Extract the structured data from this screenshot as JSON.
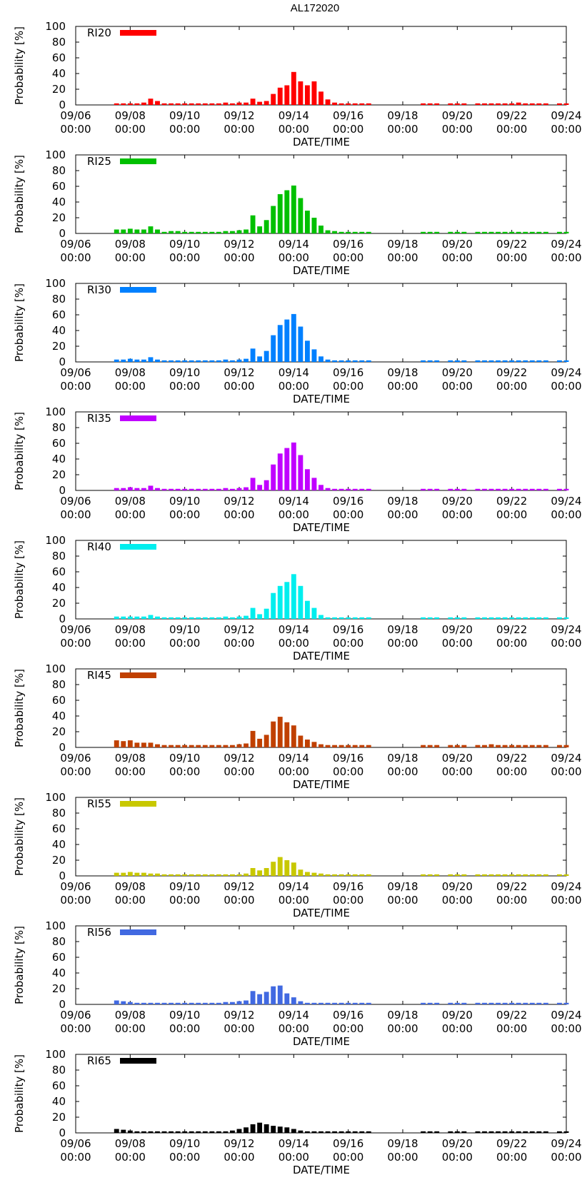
{
  "title": "AL172020",
  "chart_data": {
    "type": "bar",
    "title": "AL172020",
    "xlabel": "DATE/TIME",
    "ylabel": "Probability [%]",
    "ylim": [
      0,
      100
    ],
    "yticks": [
      "0",
      "20",
      "40",
      "60",
      "80",
      "100"
    ],
    "xlim_days": [
      0,
      18
    ],
    "xtick_days": [
      0,
      2,
      4,
      6,
      8,
      10,
      12,
      14,
      16,
      18
    ],
    "xtick_dates": [
      "09/06",
      "09/08",
      "09/10",
      "09/12",
      "09/14",
      "09/16",
      "09/18",
      "09/20",
      "09/22",
      "09/24"
    ],
    "xtick_times": [
      "00:00",
      "00:00",
      "00:00",
      "00:00",
      "00:00",
      "00:00",
      "00:00",
      "00:00",
      "00:00",
      "00:00"
    ],
    "bar_interval_hours": 6,
    "first_bar_day": 1.5,
    "legend_position": "top-left",
    "panels": [
      {
        "name": "RI20",
        "color": "#ff0000",
        "values": [
          2,
          2,
          2,
          2,
          3,
          8,
          5,
          2,
          2,
          2,
          2,
          2,
          2,
          2,
          2,
          2,
          3,
          2,
          3,
          3,
          8,
          4,
          5,
          14,
          22,
          25,
          42,
          30,
          25,
          30,
          17,
          7,
          3,
          2,
          2,
          2,
          2,
          2,
          null,
          null,
          null,
          null,
          null,
          null,
          null,
          2,
          2,
          2,
          null,
          2,
          2,
          2,
          null,
          2,
          2,
          2,
          2,
          2,
          2,
          3,
          2,
          2,
          2,
          2,
          null,
          2,
          2
        ]
      },
      {
        "name": "RI25",
        "color": "#00c000",
        "values": [
          5,
          5,
          6,
          5,
          5,
          9,
          5,
          2,
          3,
          3,
          2,
          2,
          2,
          2,
          2,
          2,
          3,
          3,
          4,
          5,
          23,
          9,
          17,
          35,
          50,
          55,
          61,
          45,
          29,
          20,
          10,
          4,
          3,
          2,
          2,
          2,
          2,
          2,
          null,
          null,
          null,
          null,
          null,
          null,
          null,
          2,
          2,
          2,
          null,
          2,
          2,
          2,
          null,
          2,
          2,
          2,
          2,
          2,
          2,
          2,
          2,
          2,
          2,
          2,
          null,
          2,
          2
        ]
      },
      {
        "name": "RI30",
        "color": "#0080ff",
        "values": [
          3,
          3,
          4,
          3,
          3,
          6,
          3,
          2,
          2,
          2,
          2,
          2,
          2,
          2,
          2,
          2,
          3,
          2,
          3,
          4,
          17,
          7,
          14,
          34,
          47,
          54,
          61,
          45,
          27,
          16,
          7,
          3,
          2,
          2,
          2,
          2,
          2,
          2,
          null,
          null,
          null,
          null,
          null,
          null,
          null,
          2,
          2,
          2,
          null,
          2,
          2,
          2,
          null,
          2,
          2,
          2,
          2,
          2,
          2,
          2,
          2,
          2,
          2,
          2,
          null,
          2,
          2
        ]
      },
      {
        "name": "RI35",
        "color": "#c000ff",
        "values": [
          3,
          3,
          4,
          3,
          3,
          6,
          3,
          2,
          2,
          2,
          2,
          2,
          2,
          2,
          2,
          2,
          3,
          2,
          3,
          4,
          16,
          7,
          13,
          33,
          47,
          54,
          61,
          45,
          27,
          16,
          7,
          3,
          2,
          2,
          2,
          2,
          2,
          2,
          null,
          null,
          null,
          null,
          null,
          null,
          null,
          2,
          2,
          2,
          null,
          2,
          2,
          2,
          null,
          2,
          2,
          2,
          2,
          2,
          2,
          2,
          2,
          2,
          2,
          2,
          null,
          2,
          2
        ]
      },
      {
        "name": "RI40",
        "color": "#00eeee",
        "values": [
          3,
          3,
          3,
          3,
          3,
          5,
          3,
          2,
          2,
          2,
          2,
          2,
          2,
          2,
          2,
          2,
          3,
          2,
          3,
          4,
          14,
          6,
          13,
          33,
          42,
          47,
          57,
          42,
          23,
          14,
          5,
          2,
          2,
          2,
          2,
          2,
          2,
          2,
          null,
          null,
          null,
          null,
          null,
          null,
          null,
          2,
          2,
          2,
          null,
          2,
          2,
          2,
          null,
          2,
          2,
          2,
          2,
          2,
          2,
          2,
          2,
          2,
          2,
          2,
          null,
          2,
          2
        ]
      },
      {
        "name": "RI45",
        "color": "#c04000",
        "values": [
          9,
          8,
          9,
          6,
          6,
          6,
          4,
          3,
          3,
          3,
          3,
          3,
          3,
          3,
          3,
          3,
          3,
          3,
          4,
          5,
          21,
          11,
          16,
          33,
          39,
          32,
          28,
          15,
          10,
          7,
          4,
          3,
          3,
          3,
          3,
          3,
          3,
          3,
          null,
          null,
          null,
          null,
          null,
          null,
          null,
          3,
          3,
          3,
          null,
          3,
          3,
          3,
          null,
          3,
          3,
          4,
          3,
          3,
          3,
          3,
          3,
          3,
          3,
          3,
          null,
          3,
          3
        ]
      },
      {
        "name": "RI55",
        "color": "#c8c800",
        "values": [
          4,
          4,
          5,
          4,
          4,
          3,
          3,
          2,
          2,
          2,
          2,
          2,
          2,
          2,
          2,
          2,
          2,
          2,
          2,
          3,
          10,
          7,
          10,
          18,
          24,
          20,
          17,
          8,
          5,
          4,
          3,
          2,
          2,
          2,
          2,
          2,
          2,
          2,
          null,
          null,
          null,
          null,
          null,
          null,
          null,
          2,
          2,
          2,
          null,
          2,
          2,
          2,
          null,
          2,
          2,
          2,
          2,
          2,
          2,
          2,
          2,
          2,
          2,
          2,
          null,
          2,
          2
        ]
      },
      {
        "name": "RI56",
        "color": "#4169e1",
        "values": [
          5,
          4,
          3,
          2,
          2,
          2,
          2,
          2,
          2,
          2,
          2,
          2,
          2,
          2,
          2,
          2,
          3,
          3,
          4,
          5,
          17,
          13,
          16,
          23,
          24,
          14,
          9,
          4,
          2,
          2,
          2,
          2,
          2,
          2,
          2,
          2,
          2,
          2,
          null,
          null,
          null,
          null,
          null,
          null,
          null,
          2,
          2,
          2,
          null,
          2,
          2,
          2,
          null,
          2,
          2,
          2,
          2,
          2,
          2,
          2,
          2,
          2,
          2,
          2,
          null,
          2,
          2
        ]
      },
      {
        "name": "RI65",
        "color": "#000000",
        "values": [
          5,
          4,
          3,
          2,
          2,
          2,
          2,
          2,
          2,
          2,
          2,
          2,
          2,
          2,
          2,
          2,
          2,
          3,
          5,
          7,
          11,
          13,
          11,
          9,
          8,
          7,
          5,
          3,
          2,
          2,
          2,
          2,
          2,
          2,
          2,
          2,
          2,
          2,
          null,
          null,
          null,
          null,
          null,
          null,
          null,
          2,
          2,
          2,
          null,
          2,
          2,
          2,
          null,
          2,
          2,
          2,
          2,
          2,
          2,
          2,
          2,
          2,
          2,
          2,
          null,
          2,
          2
        ]
      }
    ]
  }
}
